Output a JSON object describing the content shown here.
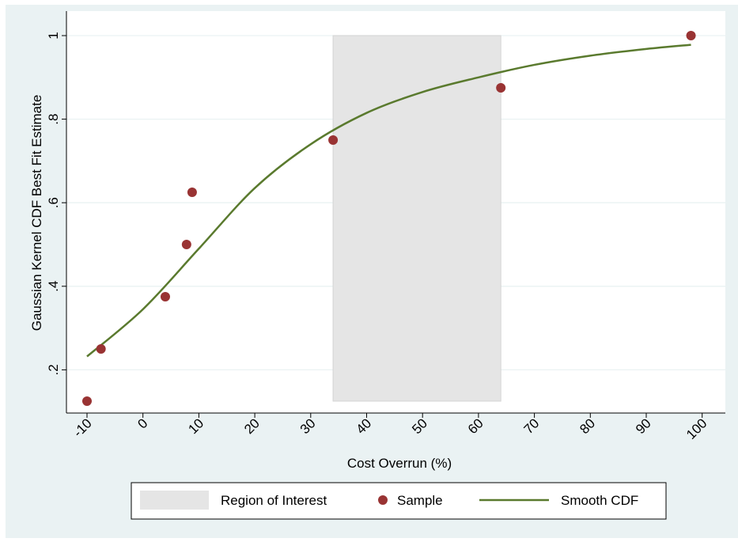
{
  "chart_data": {
    "type": "scatter",
    "xlabel": "Cost Overrun (%)",
    "ylabel": "Gaussian Kernel CDF Best Fit Estimate",
    "xlim": [
      -10,
      100
    ],
    "ylim": [
      0.125,
      1
    ],
    "xticks": [
      -10,
      0,
      10,
      20,
      30,
      40,
      50,
      60,
      70,
      80,
      90,
      100
    ],
    "xtick_labels": [
      "-10",
      "0",
      "10",
      "20",
      "30",
      "40",
      "50",
      "60",
      "70",
      "80",
      "90",
      "100"
    ],
    "yticks": [
      0.2,
      0.4,
      0.6,
      0.8,
      1
    ],
    "ytick_labels": [
      ".2",
      ".4",
      ".6",
      ".8",
      "1"
    ],
    "grid": "horizontal",
    "legend_position": "bottom",
    "region": {
      "name": "Region of Interest",
      "x_start": 34,
      "x_end": 64,
      "color": "#e5e5e5"
    },
    "series": [
      {
        "name": "Sample",
        "type": "scatter",
        "color": "#993333",
        "x": [
          -10,
          -7.5,
          4,
          7.8,
          8.8,
          34,
          64,
          98
        ],
        "y": [
          0.125,
          0.25,
          0.375,
          0.5,
          0.625,
          0.75,
          0.875,
          1.0
        ]
      },
      {
        "name": "Smooth CDF",
        "type": "line",
        "color": "#5a7a2e",
        "x": [
          -10,
          0,
          10,
          20,
          30,
          40,
          50,
          60,
          70,
          80,
          90,
          98
        ],
        "y": [
          0.232,
          0.345,
          0.49,
          0.635,
          0.74,
          0.815,
          0.865,
          0.9,
          0.93,
          0.952,
          0.968,
          0.978
        ]
      }
    ]
  }
}
